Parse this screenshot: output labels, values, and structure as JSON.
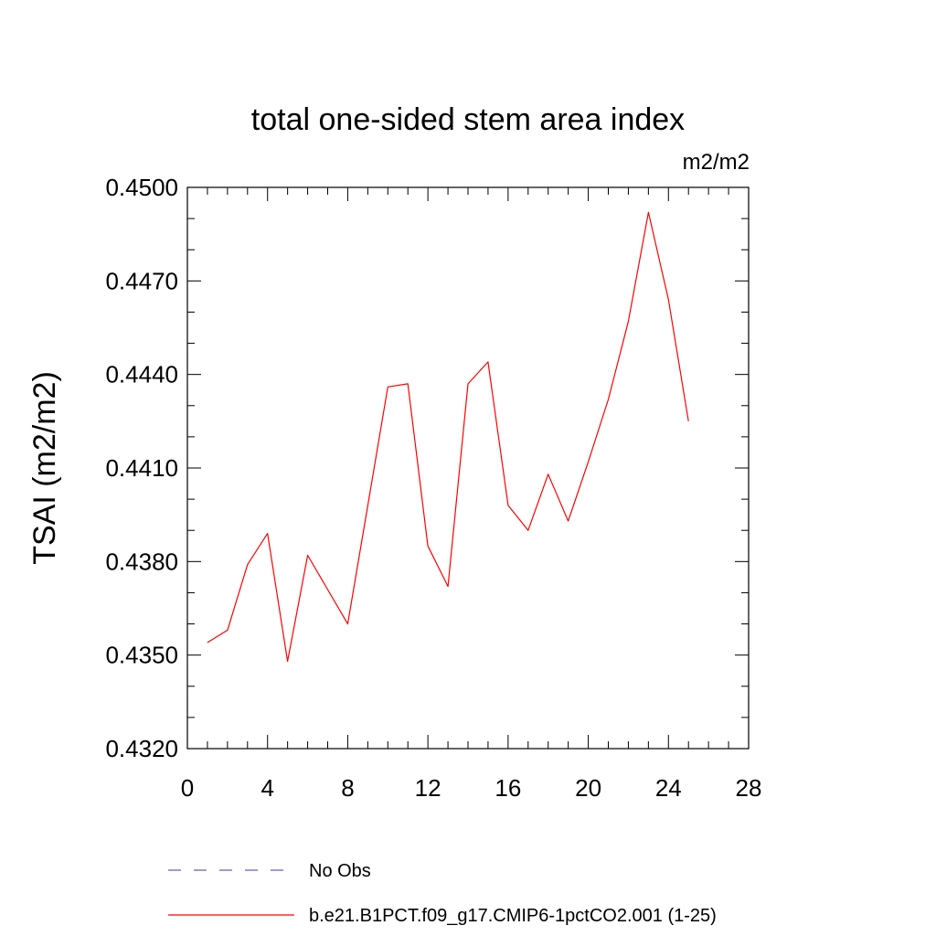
{
  "chart_data": {
    "type": "line",
    "title": "total one-sided stem area index",
    "units": "m2/m2",
    "ylabel": "TSAI  (m2/m2)",
    "xlabel": "",
    "xlim": [
      0,
      28
    ],
    "ylim": [
      0.432,
      0.45
    ],
    "xticks": [
      0,
      4,
      8,
      12,
      16,
      20,
      24,
      28
    ],
    "xtick_labels": [
      "0",
      "4",
      "8",
      "12",
      "16",
      "20",
      "24",
      "28"
    ],
    "yticks": [
      0.432,
      0.435,
      0.438,
      0.441,
      0.444,
      0.447,
      0.45
    ],
    "ytick_labels": [
      "0.4320",
      "0.4350",
      "0.4380",
      "0.4410",
      "0.4440",
      "0.4470",
      "0.4500"
    ],
    "grid": false,
    "legend_position": "bottom",
    "series": [
      {
        "name": "No Obs",
        "color": "#6a5acd",
        "dash": "dashed",
        "x": [],
        "y": []
      },
      {
        "name": "b.e21.B1PCT.f09_g17.CMIP6-1pctCO2.001 (1-25)",
        "color": "#ff0000",
        "dash": "solid",
        "x": [
          1,
          2,
          3,
          4,
          5,
          6,
          7,
          8,
          9,
          10,
          11,
          12,
          13,
          14,
          15,
          16,
          17,
          18,
          19,
          20,
          21,
          22,
          23,
          24,
          25
        ],
        "y": [
          0.4354,
          0.4358,
          0.4379,
          0.4389,
          0.4348,
          0.4382,
          0.4371,
          0.436,
          0.4398,
          0.4436,
          0.4437,
          0.4385,
          0.4372,
          0.4437,
          0.4444,
          0.4398,
          0.439,
          0.4408,
          0.4393,
          0.4412,
          0.4432,
          0.4457,
          0.4492,
          0.4464,
          0.4425
        ]
      }
    ]
  }
}
